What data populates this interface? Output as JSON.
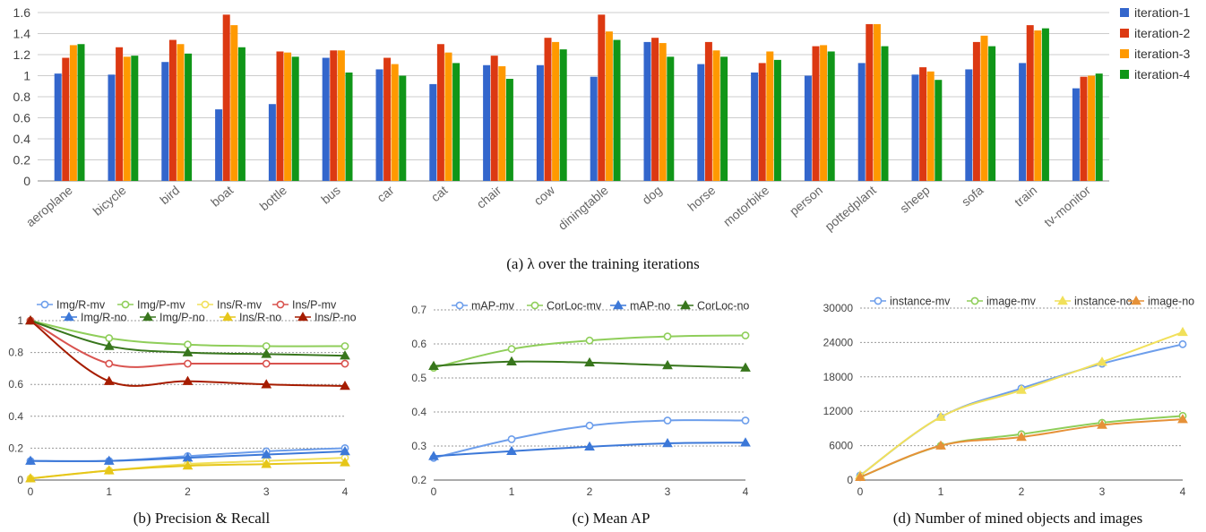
{
  "chart_data": [
    {
      "id": "a",
      "type": "bar",
      "caption": "(a) λ over the training iterations",
      "categories": [
        "aeroplane",
        "bicycle",
        "bird",
        "boat",
        "bottle",
        "bus",
        "car",
        "cat",
        "chair",
        "cow",
        "diningtable",
        "dog",
        "horse",
        "motorbike",
        "person",
        "pottedplant",
        "sheep",
        "sofa",
        "train",
        "tv-monitor"
      ],
      "series": [
        {
          "name": "iteration-1",
          "color": "#3366cc",
          "values": [
            1.02,
            1.01,
            1.13,
            0.68,
            0.73,
            1.17,
            1.06,
            0.92,
            1.1,
            1.1,
            0.99,
            1.32,
            1.11,
            1.03,
            1.0,
            1.12,
            1.01,
            1.06,
            1.12,
            0.88
          ]
        },
        {
          "name": "iteration-2",
          "color": "#dc3912",
          "values": [
            1.17,
            1.27,
            1.34,
            1.58,
            1.23,
            1.24,
            1.17,
            1.3,
            1.19,
            1.36,
            1.58,
            1.36,
            1.32,
            1.12,
            1.28,
            1.49,
            1.08,
            1.32,
            1.48,
            0.99
          ]
        },
        {
          "name": "iteration-3",
          "color": "#ff9900",
          "values": [
            1.29,
            1.18,
            1.3,
            1.48,
            1.22,
            1.24,
            1.11,
            1.22,
            1.09,
            1.32,
            1.42,
            1.31,
            1.24,
            1.23,
            1.29,
            1.49,
            1.04,
            1.38,
            1.43,
            1.0
          ]
        },
        {
          "name": "iteration-4",
          "color": "#109618",
          "values": [
            1.3,
            1.19,
            1.21,
            1.27,
            1.18,
            1.03,
            1.0,
            1.12,
            0.97,
            1.25,
            1.34,
            1.18,
            1.18,
            1.15,
            1.23,
            1.28,
            0.96,
            1.28,
            1.45,
            1.02
          ]
        }
      ],
      "ylim": [
        0,
        1.6
      ],
      "yticks": [
        "0",
        "0.2",
        "0.4",
        "0.6",
        "0.8",
        "1",
        "1.2",
        "1.4",
        "1.6"
      ],
      "legend_position": "right",
      "grid": true
    },
    {
      "id": "b",
      "type": "line",
      "caption": "(b) Precision & Recall",
      "x": [
        0,
        1,
        2,
        3,
        4
      ],
      "xticks": [
        "0",
        "1",
        "2",
        "3",
        "4"
      ],
      "ylim": [
        0,
        1
      ],
      "yticks": [
        "0",
        "0.2",
        "0.4",
        "0.6",
        "0.8",
        "1"
      ],
      "legend_position": "top",
      "grid": true,
      "series": [
        {
          "name": "Img/R-mv",
          "color": "#6d9eeb",
          "marker": "circle",
          "values": [
            0.12,
            0.12,
            0.15,
            0.18,
            0.2
          ]
        },
        {
          "name": "Img/P-mv",
          "color": "#8fce5a",
          "marker": "circle",
          "values": [
            1.0,
            0.89,
            0.85,
            0.84,
            0.84
          ]
        },
        {
          "name": "Ins/R-mv",
          "color": "#f1e05a",
          "marker": "circle",
          "values": [
            0.01,
            0.06,
            0.1,
            0.12,
            0.14
          ]
        },
        {
          "name": "Ins/P-mv",
          "color": "#d9534f",
          "marker": "circle",
          "values": [
            1.0,
            0.73,
            0.73,
            0.73,
            0.73
          ]
        },
        {
          "name": "Img/R-no",
          "color": "#3c78d8",
          "marker": "triangle",
          "values": [
            0.12,
            0.12,
            0.14,
            0.16,
            0.18
          ]
        },
        {
          "name": "Img/P-no",
          "color": "#38761d",
          "marker": "triangle",
          "values": [
            1.0,
            0.84,
            0.8,
            0.79,
            0.78
          ]
        },
        {
          "name": "Ins/R-no",
          "color": "#e6c619",
          "marker": "triangle",
          "values": [
            0.01,
            0.06,
            0.09,
            0.1,
            0.11
          ]
        },
        {
          "name": "Ins/P-no",
          "color": "#a61c00",
          "marker": "triangle",
          "values": [
            1.0,
            0.62,
            0.62,
            0.6,
            0.59
          ]
        }
      ]
    },
    {
      "id": "c",
      "type": "line",
      "caption": "(c) Mean AP",
      "x": [
        0,
        1,
        2,
        3,
        4
      ],
      "xticks": [
        "0",
        "1",
        "2",
        "3",
        "4"
      ],
      "ylim": [
        0.2,
        0.7
      ],
      "yticks": [
        "0.2",
        "0.3",
        "0.4",
        "0.5",
        "0.6",
        "0.7"
      ],
      "legend_position": "top",
      "grid": true,
      "series": [
        {
          "name": "mAP-mv",
          "color": "#6d9eeb",
          "marker": "circle",
          "values": [
            0.265,
            0.32,
            0.36,
            0.375,
            0.375
          ]
        },
        {
          "name": "CorLoc-mv",
          "color": "#8fce5a",
          "marker": "circle",
          "values": [
            0.53,
            0.585,
            0.61,
            0.622,
            0.625
          ]
        },
        {
          "name": "mAP-no",
          "color": "#3c78d8",
          "marker": "triangle",
          "values": [
            0.27,
            0.285,
            0.298,
            0.308,
            0.31
          ]
        },
        {
          "name": "CorLoc-no",
          "color": "#38761d",
          "marker": "triangle",
          "values": [
            0.535,
            0.548,
            0.545,
            0.537,
            0.53
          ]
        }
      ]
    },
    {
      "id": "d",
      "type": "line",
      "caption": "(d) Number of mined objects and images",
      "x": [
        0,
        1,
        2,
        3,
        4
      ],
      "xticks": [
        "0",
        "1",
        "2",
        "3",
        "4"
      ],
      "ylim": [
        0,
        30000
      ],
      "yticks": [
        "0",
        "6000",
        "12000",
        "18000",
        "24000",
        "30000"
      ],
      "legend_position": "top",
      "grid": true,
      "series": [
        {
          "name": "instance-mv",
          "color": "#6d9eeb",
          "marker": "circle",
          "values": [
            800,
            11000,
            16000,
            20300,
            23700
          ]
        },
        {
          "name": "image-mv",
          "color": "#8fce5a",
          "marker": "circle",
          "values": [
            500,
            6000,
            8000,
            10000,
            11200
          ]
        },
        {
          "name": "instance-no",
          "color": "#f1e05a",
          "marker": "triangle",
          "values": [
            800,
            11000,
            15700,
            20600,
            25800
          ]
        },
        {
          "name": "image-no",
          "color": "#e69138",
          "marker": "triangle",
          "values": [
            500,
            6000,
            7500,
            9600,
            10600
          ]
        }
      ]
    }
  ]
}
